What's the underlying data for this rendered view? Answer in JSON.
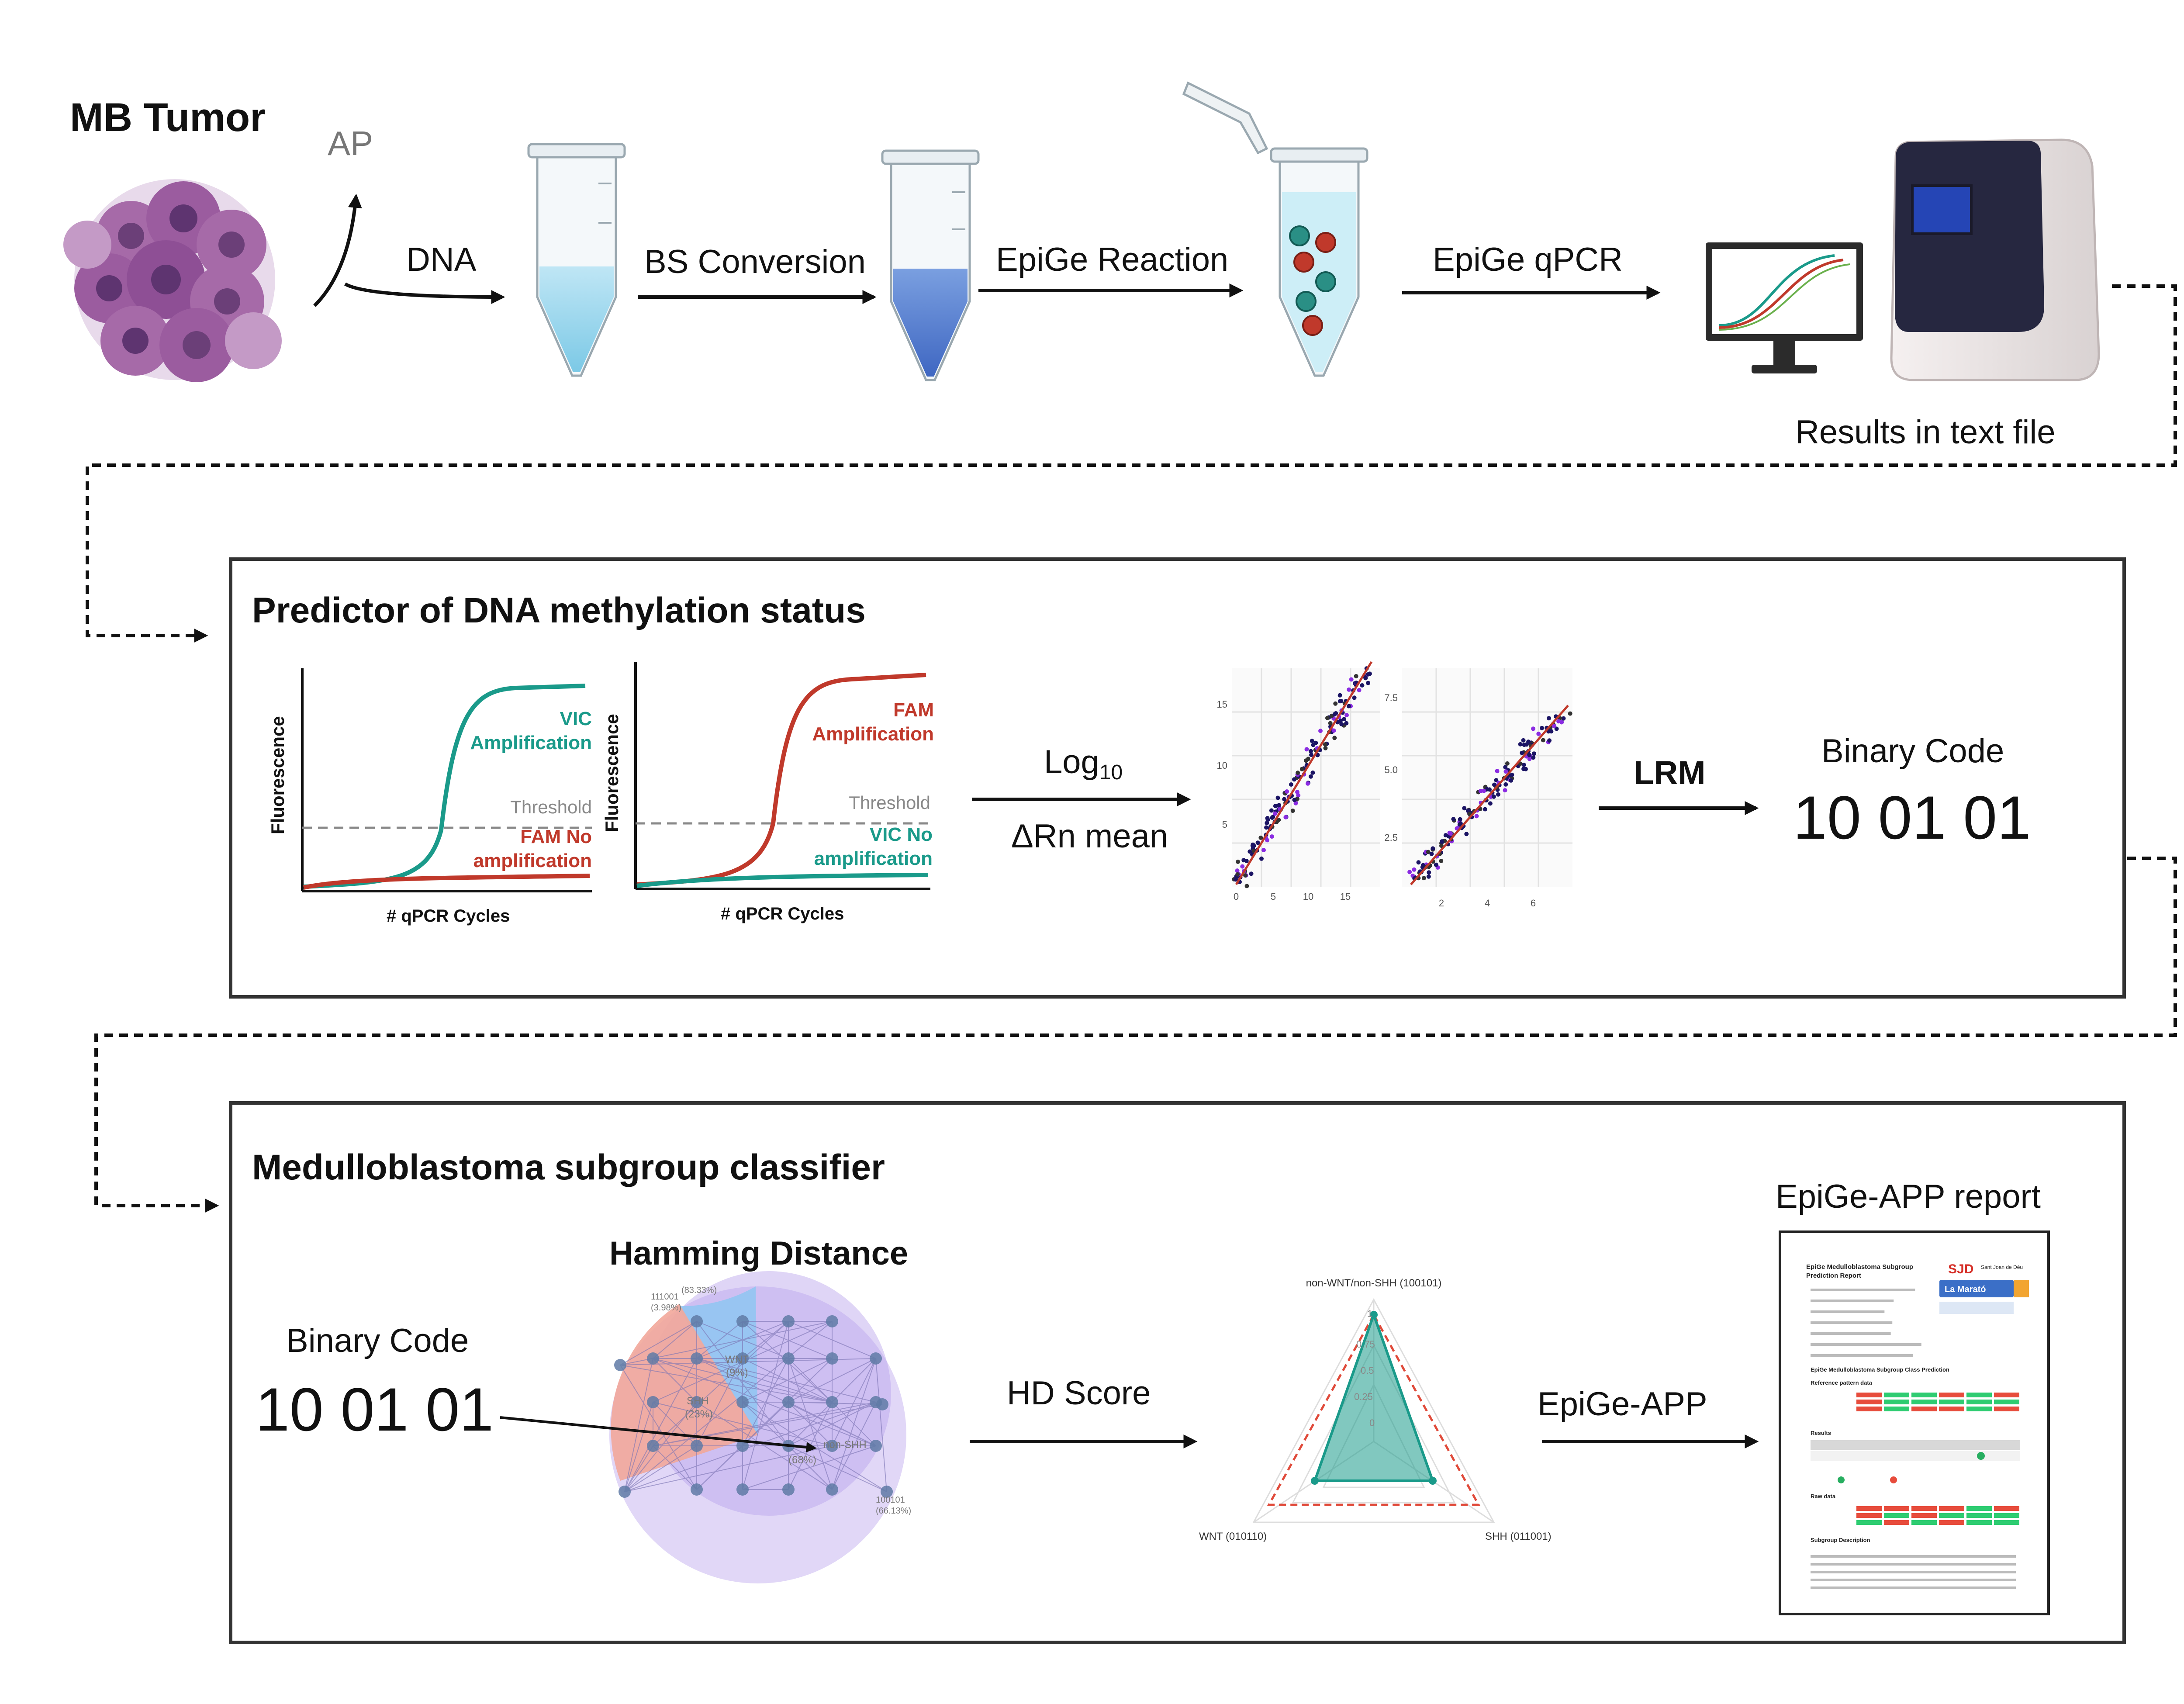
{
  "workflow": {
    "tumor_label": "MB Tumor",
    "ap_label": "AP",
    "steps": [
      "DNA",
      "BS Conversion",
      "EpiGe Reaction",
      "EpiGe qPCR"
    ],
    "results_label": "Results in text file"
  },
  "predictor": {
    "title": "Predictor of DNA methylation status",
    "plot1": {
      "ylabel": "Fluorescence",
      "xlabel": "# qPCR Cycles",
      "amp_label_1": "VIC",
      "amp_label_2": "Amplification",
      "threshold": "Threshold",
      "noamp_label_1": "FAM No",
      "noamp_label_2": "amplification"
    },
    "plot2": {
      "ylabel": "Fluorescence",
      "xlabel": "# qPCR Cycles",
      "amp_label_1": "FAM",
      "amp_label_2": "Amplification",
      "threshold": "Threshold",
      "noamp_label_1": "VIC No",
      "noamp_label_2": "amplification"
    },
    "log_label": "Log",
    "log_sub": "10",
    "rn_label": "ΔRn mean",
    "scatter1_yticks": [
      "15",
      "10",
      "5"
    ],
    "scatter1_xticks": [
      "0",
      "5",
      "10",
      "15"
    ],
    "scatter2_yticks": [
      "7.5",
      "5.0",
      "2.5"
    ],
    "scatter2_xticks": [
      "2",
      "4",
      "6"
    ],
    "lrm_label": "LRM",
    "binary_title": "Binary Code",
    "binary_value": "10 01 01"
  },
  "classifier": {
    "title": "Medulloblastoma subgroup classifier",
    "binary_title": "Binary Code",
    "binary_value": "10 01 01",
    "hamming_title": "Hamming Distance",
    "hd_labels": {
      "pct_top": "(83.33%)",
      "code_111001": "111001",
      "pct_111001": "(3.98%)",
      "wnt": "WNT",
      "wnt_pct": "(9%)",
      "shh": "SHH",
      "shh_pct": "(23%)",
      "nonshh": "non-SHH",
      "nonshh_pct": "(68%)",
      "code_100101": "100101",
      "pct_100101": "(66.13%)"
    },
    "hd_score_label": "HD Score",
    "radar": {
      "top_label": "non-WNT/non-SHH (100101)",
      "left_label": "WNT (010110)",
      "right_label": "SHH (011001)",
      "ticks": [
        "1",
        "0.75",
        "0.5",
        "0.25",
        "0"
      ]
    },
    "app_label": "EpiGe-APP",
    "report_title": "EpiGe-APP report",
    "report": {
      "heading_1": "EpiGe Medulloblastoma Subgroup",
      "heading_2": "Prediction Report",
      "logo_sjd": "SJD",
      "logo_sjd_sub": "Sant Joan de Déu",
      "logo_marato": "La Marató",
      "section_class": "EpiGe Medulloblastoma Subgroup Class Prediction",
      "section_ref": "Reference pattern data",
      "section_results": "Results",
      "section_raw": "Raw data",
      "section_desc": "Subgroup Description"
    }
  },
  "colors": {
    "teal": "#1a9a8a",
    "red": "#c0392b",
    "threshold": "#888888",
    "arrow": "#111111"
  }
}
